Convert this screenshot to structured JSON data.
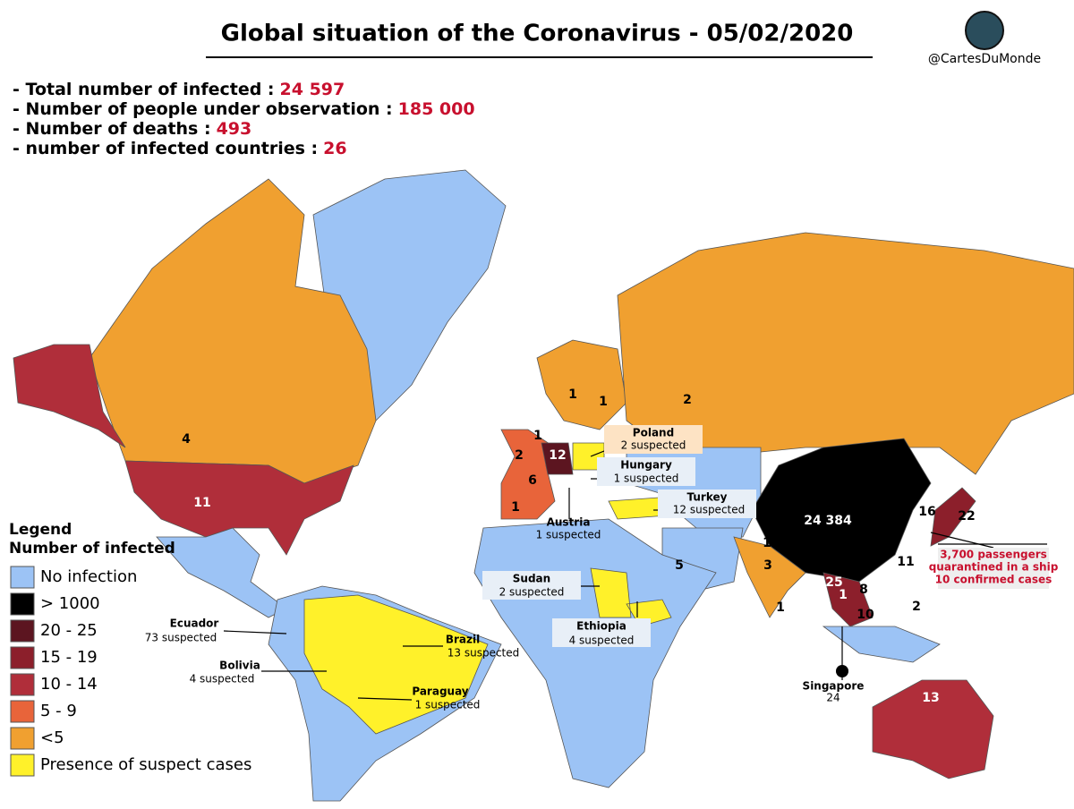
{
  "header": {
    "title": "Global situation of the Coronavirus - 05/02/2020",
    "handle": "@CartesDuMonde"
  },
  "stats": [
    {
      "label": "- Total number of infected :",
      "value": "24 597"
    },
    {
      "label": "- Number of people under observation :",
      "value": "185 000"
    },
    {
      "label": "- Number of deaths :",
      "value": "493"
    },
    {
      "label": "- number of infected countries :",
      "value": "26"
    }
  ],
  "legend": {
    "title": "Legend",
    "subtitle": "Number of infected",
    "items": [
      {
        "label": "No infection",
        "color": "#9cc3f5"
      },
      {
        "label": "> 1000",
        "color": "#000000"
      },
      {
        "label": "20 - 25",
        "color": "#5c1520"
      },
      {
        "label": "15 - 19",
        "color": "#8c1f2b"
      },
      {
        "label": "10 - 14",
        "color": "#b02e3a"
      },
      {
        "label": "5 - 9",
        "color": "#e8643a"
      },
      {
        "label": "<5",
        "color": "#f0a030"
      },
      {
        "label": "Presence of suspect cases",
        "color": "#fff12a"
      }
    ]
  },
  "map_labels": [
    "4",
    "11",
    "2",
    "1",
    "1",
    "1",
    "2",
    "12",
    "6",
    "1",
    "24 384",
    "16",
    "22",
    "1",
    "3",
    "5",
    "11",
    "25",
    "1",
    "8",
    "2",
    "10",
    "1",
    "13"
  ],
  "callouts": [
    {
      "name": "Poland",
      "note": "2 suspected"
    },
    {
      "name": "Hungary",
      "note": "1 suspected"
    },
    {
      "name": "Turkey",
      "note": "12 suspected"
    },
    {
      "name": "Austria",
      "note": "1 suspected"
    },
    {
      "name": "Sudan",
      "note": "2 suspected"
    },
    {
      "name": "Ethiopia",
      "note": "4 suspected"
    },
    {
      "name": "Ecuador",
      "note": "73 suspected"
    },
    {
      "name": "Brazil",
      "note": "13 suspected"
    },
    {
      "name": "Bolivia",
      "note": "4 suspected"
    },
    {
      "name": "Paraguay",
      "note": "1 suspected"
    },
    {
      "name": "Singapore",
      "note": "24"
    }
  ],
  "ship_note": [
    "3,700 passengers",
    "quarantined in a ship",
    "10 confirmed cases"
  ]
}
